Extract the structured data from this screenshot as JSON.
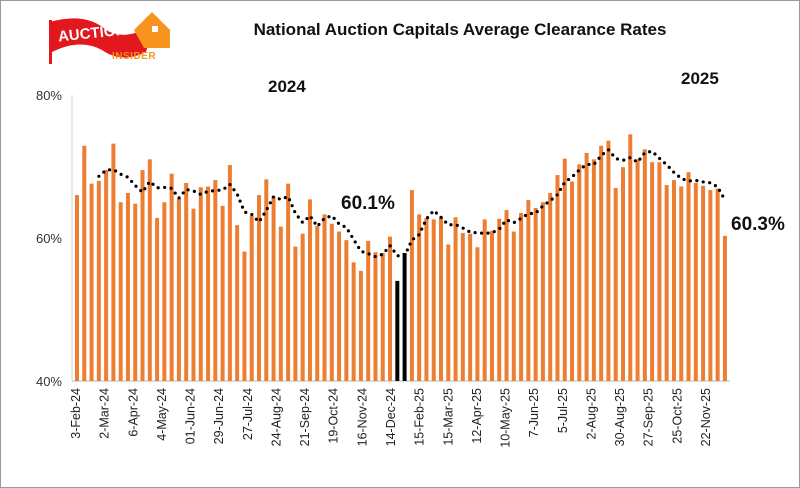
{
  "logo": {
    "text_main": "AUCTION",
    "text_sub": "INSIDER",
    "colors": {
      "red": "#E3171E",
      "orange": "#F7941D"
    }
  },
  "chart_data": {
    "type": "bar",
    "title": "National Auction Capitals Average Clearance Rates",
    "ylim": [
      40,
      80
    ],
    "y_ticks": [
      "40%",
      "60%",
      "80%"
    ],
    "y_tick_values": [
      40,
      60,
      80
    ],
    "grid": false,
    "x_tick_labels": [
      "3-Feb-24",
      "2-Mar-24",
      "6-Apr-24",
      "4-May-24",
      "01-Jun-24",
      "29-Jun-24",
      "27-Jul-24",
      "24-Aug-24",
      "21-Sep-24",
      "19-Oct-24",
      "16-Nov-24",
      "14-Dec-24",
      "15-Feb-25",
      "15-Mar-25",
      "12-Apr-25",
      "10-May-25",
      "7-Jun-25",
      "5-Jul-25",
      "2-Aug-25",
      "30-Aug-25",
      "27-Sep-25",
      "25-Oct-25",
      "22-Nov-25"
    ],
    "values": [
      66.0,
      72.9,
      67.6,
      68.0,
      69.5,
      73.2,
      65.0,
      66.3,
      64.8,
      69.5,
      71.0,
      62.8,
      65.0,
      69.0,
      65.5,
      67.7,
      64.1,
      67.1,
      67.2,
      68.1,
      64.5,
      70.2,
      61.8,
      58.1,
      63.1,
      66.0,
      68.2,
      65.8,
      61.6,
      67.6,
      58.8,
      60.6,
      65.4,
      61.7,
      63.3,
      62.0,
      60.9,
      59.7,
      56.6,
      55.4,
      59.6,
      58.0,
      57.9,
      60.2,
      54.0,
      57.9,
      66.7,
      63.3,
      62.8,
      62.6,
      62.9,
      59.1,
      62.9,
      60.7,
      60.6,
      58.7,
      62.6,
      61.0,
      62.7,
      63.9,
      60.9,
      63.5,
      65.3,
      64.2,
      65.0,
      66.3,
      68.8,
      71.1,
      67.9,
      70.3,
      71.9,
      71.0,
      72.9,
      73.6,
      67.0,
      69.9,
      74.5,
      71.0,
      72.4,
      70.6,
      70.6,
      67.4,
      68.1,
      67.2,
      69.2,
      67.7,
      67.3,
      66.7,
      66.9,
      60.3
    ],
    "highlight_indices": [
      44,
      45
    ],
    "trend": {
      "type": "moving-average",
      "window": 4,
      "style": "dotted"
    },
    "colors": {
      "bar": "#ED7D31",
      "highlight": "#000000",
      "trend": "#000000"
    },
    "annotations": {
      "year_2024": "2024",
      "year_2025": "2025",
      "label_dec24": "60.1%",
      "label_latest": "60.3%"
    }
  }
}
